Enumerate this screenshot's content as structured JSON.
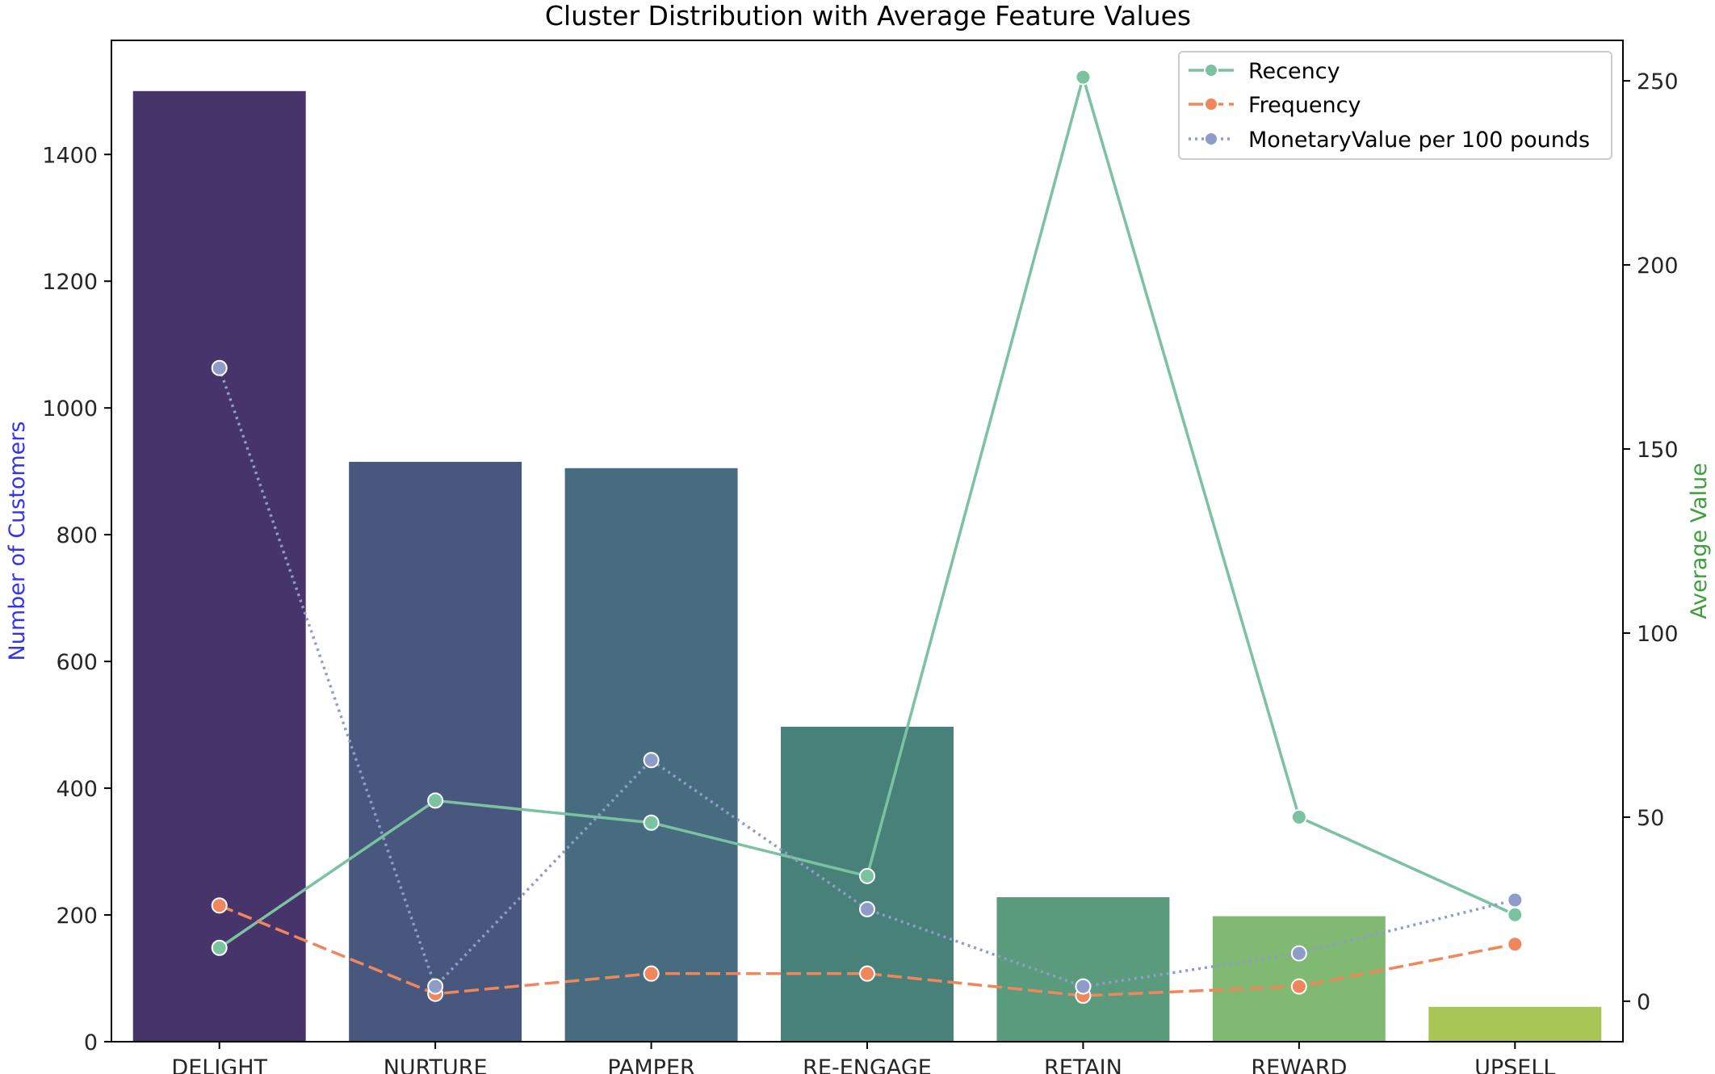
{
  "chart_data": {
    "type": "bar",
    "title": "Cluster Distribution with Average Feature Values",
    "xlabel": "",
    "ylabel": "Number of Customers",
    "y2label": "Average Value",
    "ylabel_color": "#3333ee",
    "y2label_color": "#3f9f3f",
    "categories": [
      "DELIGHT",
      "NURTURE",
      "PAMPER",
      "RE-ENGAGE",
      "RETAIN",
      "REWARD",
      "UPSELL"
    ],
    "bars": {
      "values": [
        1500,
        915,
        905,
        497,
        228,
        198,
        55
      ],
      "colors": [
        "#46346a",
        "#48577d",
        "#476c80",
        "#48807a",
        "#5b9b7d",
        "#7fb972",
        "#a8c655"
      ],
      "ylim": [
        0,
        1580
      ],
      "yticks": [
        0,
        200,
        400,
        600,
        800,
        1000,
        1200,
        1400
      ]
    },
    "y2lim": [
      -11,
      261
    ],
    "y2ticks": [
      0,
      50,
      100,
      150,
      200,
      250
    ],
    "series": [
      {
        "name": "Recency",
        "type": "line",
        "axis": "right",
        "color": "#7bc2a1",
        "style": "solid",
        "values": [
          14.5,
          54.5,
          48.5,
          34,
          251,
          50,
          23.5
        ]
      },
      {
        "name": "Frequency",
        "type": "line",
        "axis": "right",
        "color": "#f0875c",
        "style": "dashed",
        "values": [
          26,
          2,
          7.5,
          7.5,
          1.5,
          4,
          15.5
        ]
      },
      {
        "name": "MonetaryValue per 100 pounds",
        "type": "line",
        "axis": "right",
        "color": "#8f9cca",
        "style": "dotted",
        "values": [
          172,
          4,
          65.5,
          25,
          4,
          13,
          27.5
        ]
      }
    ],
    "legend_position": "top-right",
    "grid": false
  }
}
